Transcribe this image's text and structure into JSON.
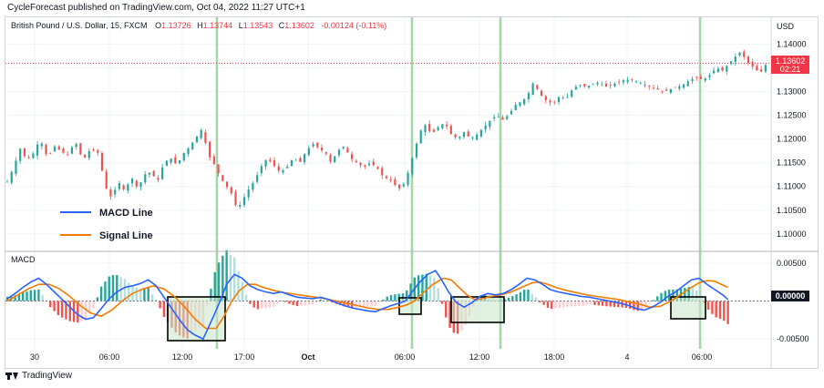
{
  "header": {
    "publisher": "CycleForecast published on TradingView.com, Oct 04, 2022 11:27 UTC+1"
  },
  "footer": {
    "brand": "TradingView"
  },
  "chart_data": {
    "type": "candlestick",
    "instrument": {
      "title": "British Pound / U.S. Dollar, 15, FXCM",
      "ohlc_labels": {
        "o": "O",
        "h": "H",
        "l": "L",
        "c": "C"
      },
      "ohlc_values": {
        "o": "1.13726",
        "h": "1.13744",
        "l": "1.13543",
        "c": "1.13602"
      },
      "change": "-0.00124 (-0.11%)"
    },
    "price_axis": {
      "unit": "USD",
      "ticks": [
        "1.14000",
        "1.13500",
        "1.13000",
        "1.12500",
        "1.12000",
        "1.11500",
        "1.11000",
        "1.10500",
        "1.10000"
      ],
      "range": [
        1.0965,
        1.1455
      ],
      "last_price": "1.13602",
      "countdown": "02:21"
    },
    "macd_axis": {
      "label": "MACD",
      "ticks": [
        "0.00500",
        "-0.00500"
      ],
      "zero_label": "0.00000",
      "range": [
        -0.0063,
        0.0063
      ]
    },
    "time_axis": {
      "ticks": [
        "30",
        "06:00",
        "12:00",
        "17:00",
        "Oct",
        "06:00",
        "12:00",
        "18:00",
        "4",
        "06:00"
      ]
    },
    "legend": [
      {
        "name": "MACD Line",
        "color": "#2962ff"
      },
      {
        "name": "Signal Line",
        "color": "#f57c00"
      }
    ],
    "price_path": [
      [
        0,
        1.111
      ],
      [
        4,
        1.1135
      ],
      [
        10,
        1.118
      ],
      [
        15,
        1.1155
      ],
      [
        20,
        1.117
      ],
      [
        25,
        1.12
      ],
      [
        31,
        1.116
      ],
      [
        36,
        1.1185
      ],
      [
        41,
        1.1175
      ],
      [
        46,
        1.1165
      ],
      [
        52,
        1.1195
      ],
      [
        58,
        1.1155
      ],
      [
        64,
        1.118
      ],
      [
        70,
        1.117
      ],
      [
        75,
        1.11
      ],
      [
        80,
        1.1075
      ],
      [
        85,
        1.111
      ],
      [
        90,
        1.109
      ],
      [
        95,
        1.112
      ],
      [
        100,
        1.1095
      ],
      [
        105,
        1.1125
      ],
      [
        110,
        1.113
      ],
      [
        115,
        1.111
      ],
      [
        120,
        1.115
      ],
      [
        125,
        1.116
      ],
      [
        130,
        1.1145
      ],
      [
        135,
        1.117
      ],
      [
        140,
        1.1185
      ],
      [
        145,
        1.1205
      ],
      [
        150,
        1.1225
      ],
      [
        153,
        1.117
      ],
      [
        158,
        1.115
      ],
      [
        163,
        1.112
      ],
      [
        168,
        1.11
      ],
      [
        173,
        1.108
      ],
      [
        176,
        1.105
      ],
      [
        180,
        1.107
      ],
      [
        185,
        1.1095
      ],
      [
        190,
        1.1115
      ],
      [
        194,
        1.114
      ],
      [
        199,
        1.116
      ],
      [
        204,
        1.1145
      ],
      [
        209,
        1.113
      ],
      [
        214,
        1.114
      ],
      [
        219,
        1.116
      ],
      [
        224,
        1.115
      ],
      [
        229,
        1.1175
      ],
      [
        234,
        1.119
      ],
      [
        239,
        1.118
      ],
      [
        244,
        1.117
      ],
      [
        248,
        1.115
      ],
      [
        253,
        1.1175
      ],
      [
        258,
        1.1185
      ],
      [
        263,
        1.116
      ],
      [
        268,
        1.115
      ],
      [
        273,
        1.114
      ],
      [
        278,
        1.115
      ],
      [
        283,
        1.114
      ],
      [
        288,
        1.112
      ],
      [
        293,
        1.1115
      ],
      [
        298,
        1.11
      ],
      [
        301,
        1.1095
      ],
      [
        305,
        1.111
      ],
      [
        308,
        1.114
      ],
      [
        312,
        1.1175
      ],
      [
        316,
        1.1215
      ],
      [
        320,
        1.123
      ],
      [
        325,
        1.121
      ],
      [
        330,
        1.1225
      ],
      [
        335,
        1.1235
      ],
      [
        340,
        1.121
      ],
      [
        345,
        1.12
      ],
      [
        350,
        1.1215
      ],
      [
        355,
        1.12
      ],
      [
        360,
        1.121
      ],
      [
        365,
        1.1225
      ],
      [
        370,
        1.124
      ],
      [
        375,
        1.125
      ],
      [
        380,
        1.124
      ],
      [
        385,
        1.1255
      ],
      [
        390,
        1.1275
      ],
      [
        395,
        1.128
      ],
      [
        400,
        1.13
      ],
      [
        403,
        1.132
      ],
      [
        408,
        1.1295
      ],
      [
        413,
        1.128
      ],
      [
        418,
        1.1275
      ],
      [
        423,
        1.129
      ],
      [
        428,
        1.1285
      ],
      [
        433,
        1.1305
      ],
      [
        438,
        1.1315
      ],
      [
        443,
        1.131
      ],
      [
        448,
        1.1315
      ],
      [
        453,
        1.132
      ],
      [
        458,
        1.131
      ],
      [
        463,
        1.1315
      ],
      [
        468,
        1.132
      ],
      [
        473,
        1.1325
      ],
      [
        478,
        1.1325
      ],
      [
        483,
        1.132
      ],
      [
        488,
        1.1315
      ],
      [
        493,
        1.131
      ],
      [
        498,
        1.1305
      ],
      [
        503,
        1.13
      ],
      [
        508,
        1.1305
      ],
      [
        513,
        1.131
      ],
      [
        518,
        1.1315
      ],
      [
        523,
        1.1325
      ],
      [
        528,
        1.133
      ],
      [
        533,
        1.1325
      ],
      [
        538,
        1.1335
      ],
      [
        543,
        1.135
      ],
      [
        548,
        1.1345
      ],
      [
        553,
        1.136
      ],
      [
        558,
        1.1375
      ],
      [
        562,
        1.1385
      ],
      [
        566,
        1.1365
      ],
      [
        570,
        1.1355
      ],
      [
        574,
        1.1345
      ],
      [
        577,
        1.134
      ],
      [
        580,
        1.1355
      ],
      [
        583,
        1.136
      ]
    ],
    "macd_series": {
      "macd": [
        [
          0,
          0.0003
        ],
        [
          6,
          0.001
        ],
        [
          12,
          0.0018
        ],
        [
          18,
          0.0025
        ],
        [
          24,
          0.003
        ],
        [
          30,
          0.0022
        ],
        [
          36,
          0.0012
        ],
        [
          42,
          0.0002
        ],
        [
          48,
          -0.0008
        ],
        [
          54,
          -0.0018
        ],
        [
          60,
          -0.0024
        ],
        [
          66,
          -0.0022
        ],
        [
          72,
          -0.001
        ],
        [
          78,
          0.0003
        ],
        [
          84,
          0.0012
        ],
        [
          90,
          0.0018
        ],
        [
          96,
          0.002
        ],
        [
          102,
          0.0023
        ],
        [
          108,
          0.0028
        ],
        [
          114,
          0.002
        ],
        [
          120,
          0.0005
        ],
        [
          126,
          -0.001
        ],
        [
          132,
          -0.0025
        ],
        [
          138,
          -0.0038
        ],
        [
          144,
          -0.0045
        ],
        [
          150,
          -0.005
        ],
        [
          154,
          -0.0035
        ],
        [
          158,
          -0.002
        ],
        [
          163,
          0.0
        ],
        [
          168,
          0.0022
        ],
        [
          174,
          0.0035
        ],
        [
          180,
          0.003
        ],
        [
          186,
          0.002
        ],
        [
          192,
          0.0015
        ],
        [
          198,
          0.0012
        ],
        [
          204,
          0.001
        ],
        [
          210,
          0.0012
        ],
        [
          216,
          0.0008
        ],
        [
          222,
          0.0005
        ],
        [
          228,
          0.0004
        ],
        [
          234,
          0.0003
        ],
        [
          240,
          0.0005
        ],
        [
          246,
          0.0002
        ],
        [
          252,
          -0.0002
        ],
        [
          258,
          -0.0006
        ],
        [
          264,
          -0.0009
        ],
        [
          270,
          -0.0011
        ],
        [
          276,
          -0.0013
        ],
        [
          282,
          -0.0014
        ],
        [
          288,
          -0.001
        ],
        [
          294,
          -0.0006
        ],
        [
          300,
          -0.0003
        ],
        [
          305,
          0.0
        ],
        [
          310,
          0.0012
        ],
        [
          316,
          0.0025
        ],
        [
          322,
          0.0035
        ],
        [
          328,
          0.004
        ],
        [
          332,
          0.003
        ],
        [
          338,
          0.0012
        ],
        [
          344,
          -0.0002
        ],
        [
          350,
          -0.0008
        ],
        [
          356,
          -0.0002
        ],
        [
          362,
          0.0006
        ],
        [
          368,
          0.001
        ],
        [
          374,
          0.0008
        ],
        [
          380,
          0.001
        ],
        [
          386,
          0.0015
        ],
        [
          392,
          0.0022
        ],
        [
          398,
          0.003
        ],
        [
          404,
          0.0028
        ],
        [
          410,
          0.0022
        ],
        [
          416,
          0.0015
        ],
        [
          422,
          0.0012
        ],
        [
          428,
          0.001
        ],
        [
          434,
          0.0008
        ],
        [
          440,
          0.0006
        ],
        [
          446,
          0.0005
        ],
        [
          452,
          0.0003
        ],
        [
          458,
          0.0001
        ],
        [
          464,
          -0.0001
        ],
        [
          470,
          -0.0003
        ],
        [
          476,
          -0.0006
        ],
        [
          482,
          -0.001
        ],
        [
          488,
          -0.0012
        ],
        [
          494,
          -0.0008
        ],
        [
          500,
          -0.0002
        ],
        [
          506,
          0.0006
        ],
        [
          512,
          0.0012
        ],
        [
          518,
          0.002
        ],
        [
          524,
          0.0028
        ],
        [
          530,
          0.003
        ],
        [
          536,
          0.0022
        ],
        [
          542,
          0.0015
        ],
        [
          548,
          0.0008
        ],
        [
          552,
          0.0002
        ]
      ],
      "signal": [
        [
          0,
          0.0
        ],
        [
          8,
          0.0008
        ],
        [
          16,
          0.0016
        ],
        [
          24,
          0.0022
        ],
        [
          32,
          0.0022
        ],
        [
          40,
          0.0016
        ],
        [
          48,
          0.0006
        ],
        [
          56,
          -0.0006
        ],
        [
          64,
          -0.0016
        ],
        [
          72,
          -0.002
        ],
        [
          80,
          -0.0012
        ],
        [
          88,
          0.0
        ],
        [
          96,
          0.001
        ],
        [
          104,
          0.0016
        ],
        [
          112,
          0.002
        ],
        [
          120,
          0.0016
        ],
        [
          128,
          0.0006
        ],
        [
          136,
          -0.0008
        ],
        [
          144,
          -0.0024
        ],
        [
          152,
          -0.0036
        ],
        [
          160,
          -0.0036
        ],
        [
          166,
          -0.002
        ],
        [
          172,
          0.0
        ],
        [
          178,
          0.0014
        ],
        [
          184,
          0.0022
        ],
        [
          190,
          0.0022
        ],
        [
          196,
          0.0018
        ],
        [
          204,
          0.0014
        ],
        [
          212,
          0.0011
        ],
        [
          220,
          0.0009
        ],
        [
          228,
          0.0007
        ],
        [
          236,
          0.0005
        ],
        [
          244,
          0.0003
        ],
        [
          252,
          0.0
        ],
        [
          260,
          -0.0003
        ],
        [
          268,
          -0.0006
        ],
        [
          276,
          -0.0009
        ],
        [
          284,
          -0.0011
        ],
        [
          292,
          -0.0011
        ],
        [
          300,
          -0.0008
        ],
        [
          306,
          -0.0005
        ],
        [
          312,
          0.0
        ],
        [
          318,
          0.001
        ],
        [
          326,
          0.0022
        ],
        [
          334,
          0.003
        ],
        [
          340,
          0.0028
        ],
        [
          346,
          0.0018
        ],
        [
          352,
          0.0008
        ],
        [
          358,
          0.0002
        ],
        [
          364,
          0.0003
        ],
        [
          370,
          0.0006
        ],
        [
          378,
          0.0008
        ],
        [
          386,
          0.0012
        ],
        [
          394,
          0.0018
        ],
        [
          402,
          0.0024
        ],
        [
          408,
          0.0025
        ],
        [
          414,
          0.0022
        ],
        [
          420,
          0.0018
        ],
        [
          428,
          0.0014
        ],
        [
          436,
          0.0011
        ],
        [
          444,
          0.0008
        ],
        [
          452,
          0.0006
        ],
        [
          460,
          0.0004
        ],
        [
          468,
          0.0002
        ],
        [
          476,
          -0.0001
        ],
        [
          484,
          -0.0004
        ],
        [
          492,
          -0.0008
        ],
        [
          500,
          -0.0007
        ],
        [
          506,
          -0.0002
        ],
        [
          512,
          0.0004
        ],
        [
          518,
          0.0011
        ],
        [
          524,
          0.0018
        ],
        [
          530,
          0.0024
        ],
        [
          536,
          0.0027
        ],
        [
          542,
          0.0026
        ],
        [
          548,
          0.0021
        ],
        [
          552,
          0.0018
        ]
      ]
    }
  }
}
